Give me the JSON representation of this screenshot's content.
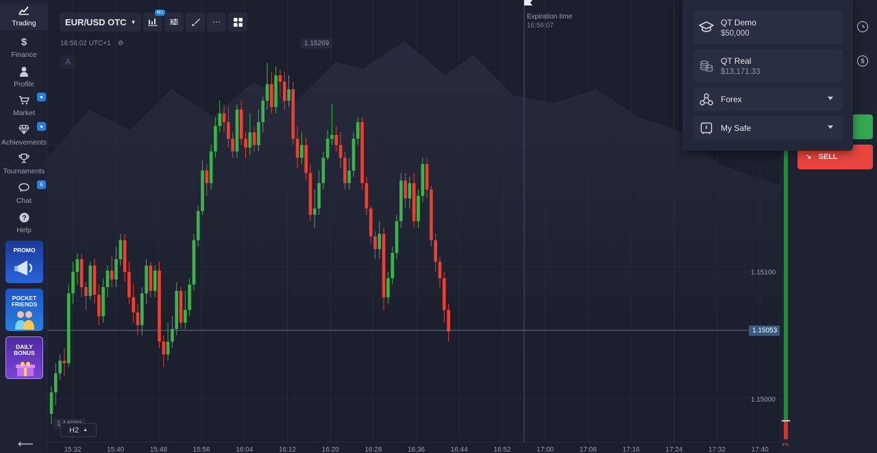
{
  "sidebar": {
    "items": [
      {
        "label": "Trading",
        "icon": "chart-line-icon"
      },
      {
        "label": "Finance",
        "icon": "dollar-icon"
      },
      {
        "label": "Profile",
        "icon": "user-icon"
      },
      {
        "label": "Market",
        "icon": "cart-icon"
      },
      {
        "label": "Achievements",
        "icon": "diamond-icon"
      },
      {
        "label": "Tournaments",
        "icon": "trophy-icon"
      },
      {
        "label": "Chat",
        "icon": "chat-icon",
        "badge": "6"
      },
      {
        "label": "Help",
        "icon": "help-icon"
      }
    ],
    "promos": [
      {
        "label": "PROMO"
      },
      {
        "label": "POCKET FRIENDS"
      },
      {
        "label": "DAILY BONUS"
      }
    ]
  },
  "toolbar": {
    "asset": "EUR/USD OTC",
    "chart_type_badge": "M1"
  },
  "chart": {
    "clock": "16:56:02 UTC+1",
    "drawing_label": "A",
    "expiration_label": "Expiration time",
    "expiration_time": "16:56:07",
    "timeframe": "H2",
    "price_high_label": "1.15269",
    "price_low_label": "1.14988",
    "current_price": "1.15053",
    "y_ticks": [
      "1.15100",
      "1.15000"
    ],
    "x_ticks": [
      "15:32",
      "15:40",
      "15:48",
      "15:56",
      "16:04",
      "16:12",
      "16:20",
      "16:28",
      "16:36",
      "16:44",
      "16:52",
      "17:00",
      "17:08",
      "17:16",
      "17:24",
      "17:32",
      "17:40"
    ],
    "colors": {
      "up": "#39b54a",
      "down": "#ee3f30",
      "bg": "#1b1e2c"
    }
  },
  "chart_data": {
    "type": "candlestick",
    "x_unit": "1-minute candles (intervals approx.)",
    "y_range": [
      1.14988,
      1.15269
    ],
    "candles": [
      [
        1.14988,
        1.15005,
        1.1498,
        1.1501
      ],
      [
        1.15005,
        1.1502,
        1.14995,
        1.15028
      ],
      [
        1.1502,
        1.1503,
        1.15015,
        1.15035
      ],
      [
        1.1503,
        1.15028,
        1.15018,
        1.1504
      ],
      [
        1.15028,
        1.15083,
        1.15025,
        1.1509
      ],
      [
        1.15083,
        1.151,
        1.15075,
        1.15108
      ],
      [
        1.151,
        1.1511,
        1.1509,
        1.15115
      ],
      [
        1.1511,
        1.15088,
        1.1508,
        1.15114
      ],
      [
        1.15088,
        1.15081,
        1.1507,
        1.15092
      ],
      [
        1.15081,
        1.15105,
        1.15078,
        1.15108
      ],
      [
        1.15105,
        1.15082,
        1.15075,
        1.1511
      ],
      [
        1.15082,
        1.15065,
        1.15058,
        1.1509
      ],
      [
        1.15065,
        1.15088,
        1.1506,
        1.15095
      ],
      [
        1.15088,
        1.15101,
        1.1508,
        1.15105
      ],
      [
        1.15101,
        1.15094,
        1.15088,
        1.15112
      ],
      [
        1.15094,
        1.1511,
        1.15088,
        1.1512
      ],
      [
        1.1511,
        1.15125,
        1.15105,
        1.1513
      ],
      [
        1.15125,
        1.151,
        1.15092,
        1.1513
      ],
      [
        1.151,
        1.1508,
        1.15075,
        1.15108
      ],
      [
        1.1508,
        1.15068,
        1.1506,
        1.1509
      ],
      [
        1.15068,
        1.15058,
        1.1505,
        1.15075
      ],
      [
        1.15058,
        1.15083,
        1.1505,
        1.15088
      ],
      [
        1.15083,
        1.15105,
        1.15075,
        1.1511
      ],
      [
        1.15105,
        1.15085,
        1.1508,
        1.15108
      ],
      [
        1.15085,
        1.15101,
        1.1508,
        1.15105
      ],
      [
        1.15101,
        1.15045,
        1.1504,
        1.15108
      ],
      [
        1.15045,
        1.15035,
        1.15025,
        1.1505
      ],
      [
        1.15035,
        1.15045,
        1.1503,
        1.1506
      ],
      [
        1.15045,
        1.15055,
        1.1504,
        1.15065
      ],
      [
        1.15055,
        1.15085,
        1.1505,
        1.15092
      ],
      [
        1.15085,
        1.1506,
        1.15055,
        1.15088
      ],
      [
        1.1506,
        1.1507,
        1.15055,
        1.15085
      ],
      [
        1.1507,
        1.1509,
        1.15065,
        1.15095
      ],
      [
        1.1509,
        1.15125,
        1.15085,
        1.1513
      ],
      [
        1.15125,
        1.15148,
        1.1512,
        1.15152
      ],
      [
        1.15148,
        1.1518,
        1.15145,
        1.15188
      ],
      [
        1.1518,
        1.1517,
        1.1516,
        1.15185
      ],
      [
        1.1517,
        1.15195,
        1.15165,
        1.152
      ],
      [
        1.15195,
        1.15215,
        1.1519,
        1.15222
      ],
      [
        1.15215,
        1.15225,
        1.1521,
        1.15235
      ],
      [
        1.15225,
        1.15218,
        1.1521,
        1.15232
      ],
      [
        1.15218,
        1.15205,
        1.15198,
        1.1523
      ],
      [
        1.15205,
        1.15195,
        1.1519,
        1.1521
      ],
      [
        1.15195,
        1.15228,
        1.1519,
        1.15232
      ],
      [
        1.15228,
        1.15205,
        1.152,
        1.15235
      ],
      [
        1.15205,
        1.15198,
        1.1519,
        1.1521
      ],
      [
        1.15198,
        1.1521,
        1.15192,
        1.15225
      ],
      [
        1.1521,
        1.152,
        1.15195,
        1.15215
      ],
      [
        1.152,
        1.15218,
        1.15195,
        1.15228
      ],
      [
        1.15218,
        1.15235,
        1.1521,
        1.15238
      ],
      [
        1.15235,
        1.15248,
        1.15228,
        1.15265
      ],
      [
        1.15248,
        1.1523,
        1.15225,
        1.15258
      ],
      [
        1.1523,
        1.15255,
        1.15225,
        1.15262
      ],
      [
        1.15255,
        1.1525,
        1.15238,
        1.1526
      ],
      [
        1.1525,
        1.15235,
        1.15228,
        1.15258
      ],
      [
        1.15235,
        1.15244,
        1.1523,
        1.15255
      ],
      [
        1.15244,
        1.15205,
        1.152,
        1.1525
      ],
      [
        1.15205,
        1.1519,
        1.15182,
        1.15215
      ],
      [
        1.1519,
        1.152,
        1.15185,
        1.1521
      ],
      [
        1.152,
        1.15178,
        1.15172,
        1.15206
      ],
      [
        1.15178,
        1.15145,
        1.1514,
        1.15185
      ],
      [
        1.15145,
        1.1515,
        1.15135,
        1.15165
      ],
      [
        1.1515,
        1.1517,
        1.15145,
        1.1518
      ],
      [
        1.1517,
        1.1519,
        1.15165,
        1.15195
      ],
      [
        1.1519,
        1.15205,
        1.15188,
        1.15212
      ],
      [
        1.15205,
        1.15208,
        1.152,
        1.15232
      ],
      [
        1.15208,
        1.152,
        1.15195,
        1.15215
      ],
      [
        1.152,
        1.1519,
        1.15182,
        1.1521
      ],
      [
        1.1519,
        1.1517,
        1.15165,
        1.15195
      ],
      [
        1.1517,
        1.1518,
        1.15165,
        1.1519
      ],
      [
        1.1518,
        1.15205,
        1.15175,
        1.1521
      ],
      [
        1.15205,
        1.15218,
        1.152,
        1.15222
      ],
      [
        1.15218,
        1.1517,
        1.15165,
        1.15222
      ],
      [
        1.1517,
        1.1515,
        1.15145,
        1.15175
      ],
      [
        1.1515,
        1.15128,
        1.15122,
        1.15152
      ],
      [
        1.15128,
        1.15118,
        1.1511,
        1.15132
      ],
      [
        1.15118,
        1.1513,
        1.1511,
        1.1514
      ],
      [
        1.1513,
        1.1508,
        1.1507,
        1.15135
      ],
      [
        1.1508,
        1.15095,
        1.15075,
        1.151
      ],
      [
        1.15095,
        1.15115,
        1.1509,
        1.1512
      ],
      [
        1.15115,
        1.1514,
        1.1511,
        1.15145
      ],
      [
        1.1514,
        1.15172,
        1.15135,
        1.15178
      ],
      [
        1.15172,
        1.15158,
        1.1515,
        1.15178
      ],
      [
        1.15158,
        1.1517,
        1.1515,
        1.15175
      ],
      [
        1.1517,
        1.1514,
        1.15135,
        1.15178
      ],
      [
        1.1514,
        1.1516,
        1.15135,
        1.15165
      ],
      [
        1.1516,
        1.15185,
        1.15155,
        1.1519
      ],
      [
        1.15185,
        1.15165,
        1.15158,
        1.1519
      ],
      [
        1.15165,
        1.15125,
        1.1512,
        1.15168
      ],
      [
        1.15125,
        1.15108,
        1.151,
        1.1513
      ],
      [
        1.15108,
        1.15095,
        1.15088,
        1.15112
      ],
      [
        1.15095,
        1.1507,
        1.1506,
        1.151
      ],
      [
        1.1507,
        1.15053,
        1.15045,
        1.15075
      ]
    ]
  },
  "account_menu": {
    "items": [
      {
        "name": "QT Demo",
        "value": "$50,000",
        "icon": "graduation-cap-icon"
      },
      {
        "name": "QT Real",
        "value": "$13,171.33",
        "icon": "coins-icon"
      }
    ],
    "selects": [
      {
        "label": "Forex",
        "icon": "network-icon"
      },
      {
        "label": "My Safe",
        "icon": "safe-icon"
      }
    ]
  },
  "trade_panel": {
    "sell_label": "SELL",
    "sentiment_down": "4%"
  }
}
